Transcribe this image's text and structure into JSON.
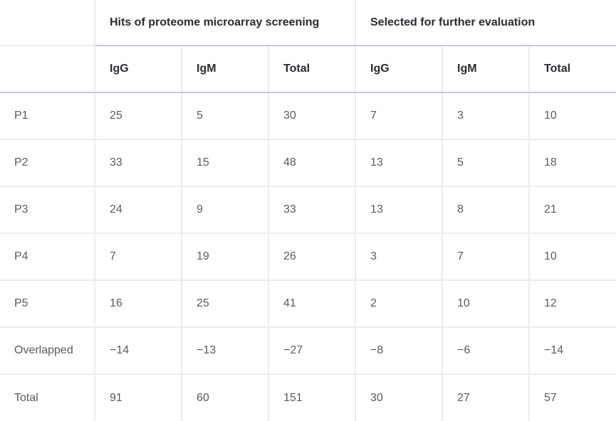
{
  "header": {
    "groups": [
      "Hits of proteome microarray screening",
      "Selected for further evaluation"
    ],
    "subheaders": [
      "IgG",
      "IgM",
      "Total",
      "IgG",
      "IgM",
      "Total"
    ]
  },
  "rows": [
    {
      "label": "P1",
      "values": [
        "25",
        "5",
        "30",
        "7",
        "3",
        "10"
      ]
    },
    {
      "label": "P2",
      "values": [
        "33",
        "15",
        "48",
        "13",
        "5",
        "18"
      ]
    },
    {
      "label": "P3",
      "values": [
        "24",
        "9",
        "33",
        "13",
        "8",
        "21"
      ]
    },
    {
      "label": "P4",
      "values": [
        "7",
        "19",
        "26",
        "3",
        "7",
        "10"
      ]
    },
    {
      "label": "P5",
      "values": [
        "16",
        "25",
        "41",
        "2",
        "10",
        "12"
      ]
    },
    {
      "label": "Overlapped",
      "values": [
        "−14",
        "−13",
        "−27",
        "−8",
        "−6",
        "−14"
      ]
    },
    {
      "label": "Total",
      "values": [
        "91",
        "60",
        "151",
        "30",
        "27",
        "57"
      ]
    }
  ]
}
